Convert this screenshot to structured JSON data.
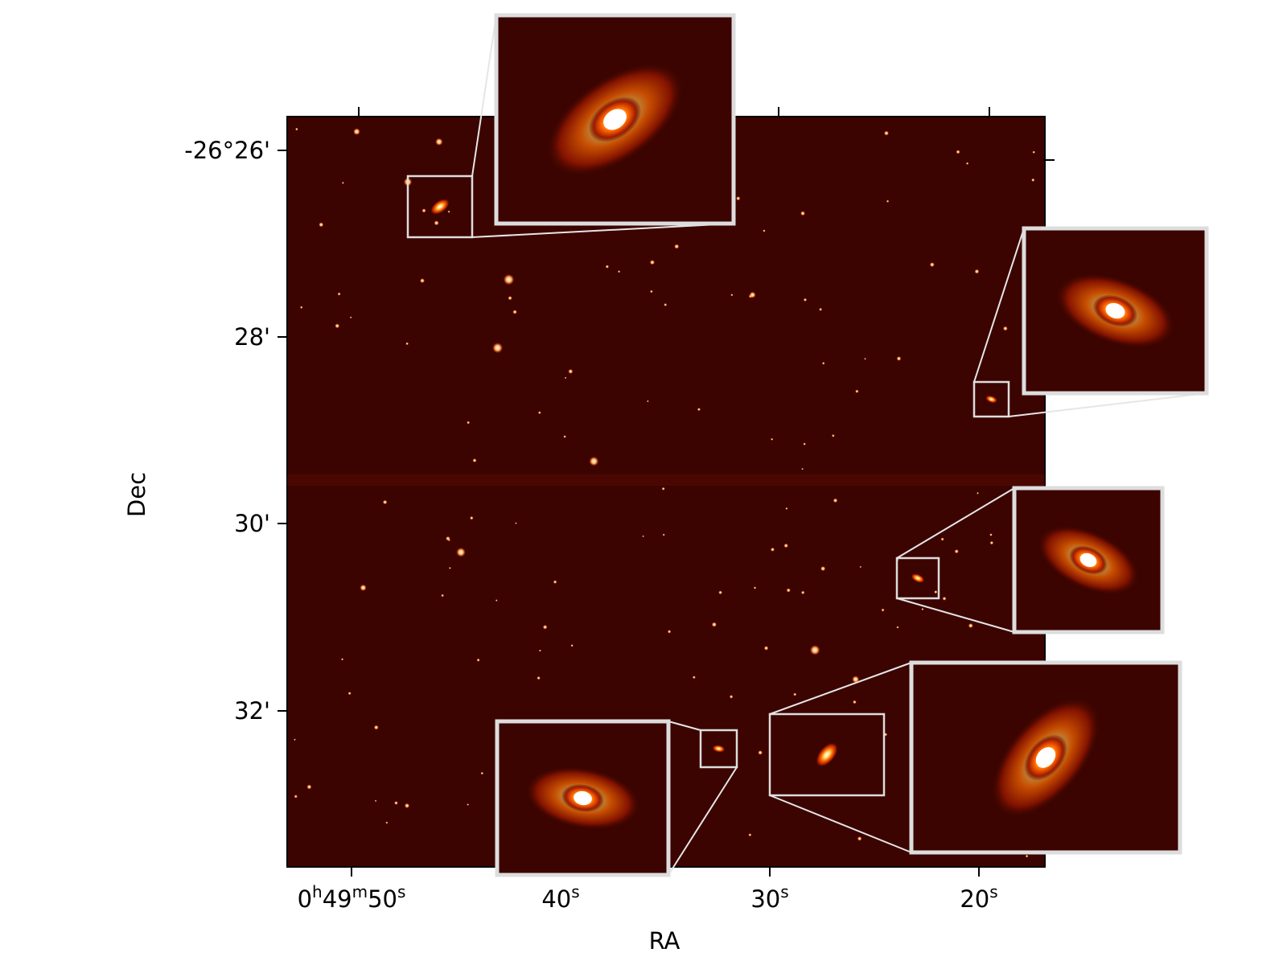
{
  "axes": {
    "x_label": "RA",
    "y_label": "Dec",
    "x_ticks": [
      "0h49m50s",
      "40s",
      "30s",
      "20s"
    ],
    "y_ticks": [
      "-26°26'",
      "28'",
      "30'",
      "32'"
    ]
  }
}
